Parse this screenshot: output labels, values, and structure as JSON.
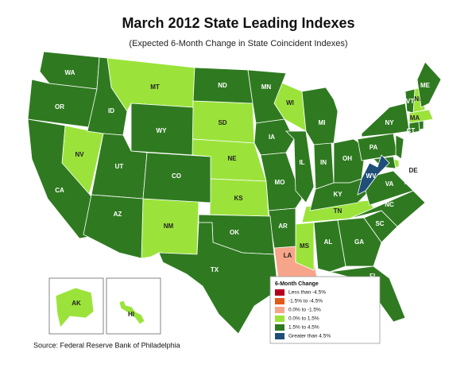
{
  "title": "March 2012 State Leading Indexes",
  "subtitle": "(Expected 6-Month Change in State Coincident Indexes)",
  "legend": {
    "title": "6-Month Change",
    "items": [
      {
        "label": "Less than -4.5%",
        "color": "#b3001b",
        "states": []
      },
      {
        "label": "-1.5% to -4.5%",
        "color": "#e05a1a",
        "states": []
      },
      {
        "label": "0.0% to -1.5%",
        "color": "#f7a58a",
        "states": [
          "LA"
        ]
      },
      {
        "label": "0.0% to  1.5%",
        "color": "#9be33b",
        "states": [
          "MT",
          "SD",
          "NE",
          "KS",
          "NV",
          "NM",
          "WI",
          "TN",
          "MS",
          "NH",
          "MA",
          "DE",
          "AK",
          "HI"
        ]
      },
      {
        "label": "1.5% to  4.5%",
        "color": "#2f7a20",
        "states": [
          "WA",
          "OR",
          "CA",
          "ID",
          "WY",
          "UT",
          "AZ",
          "CO",
          "ND",
          "MN",
          "IA",
          "MO",
          "AR",
          "IL",
          "MI",
          "IN",
          "OH",
          "KY",
          "AL",
          "GA",
          "FL",
          "SC",
          "NC",
          "VA",
          "PA",
          "NY",
          "ME",
          "VT",
          "CT",
          "RI",
          "NJ",
          "MD",
          "OK",
          "TX"
        ]
      },
      {
        "label": "Greater than 4.5%",
        "color": "#1f4e79",
        "states": [
          "WV"
        ]
      }
    ]
  },
  "source": "Source: Federal Reserve Bank of Philadelphia"
}
